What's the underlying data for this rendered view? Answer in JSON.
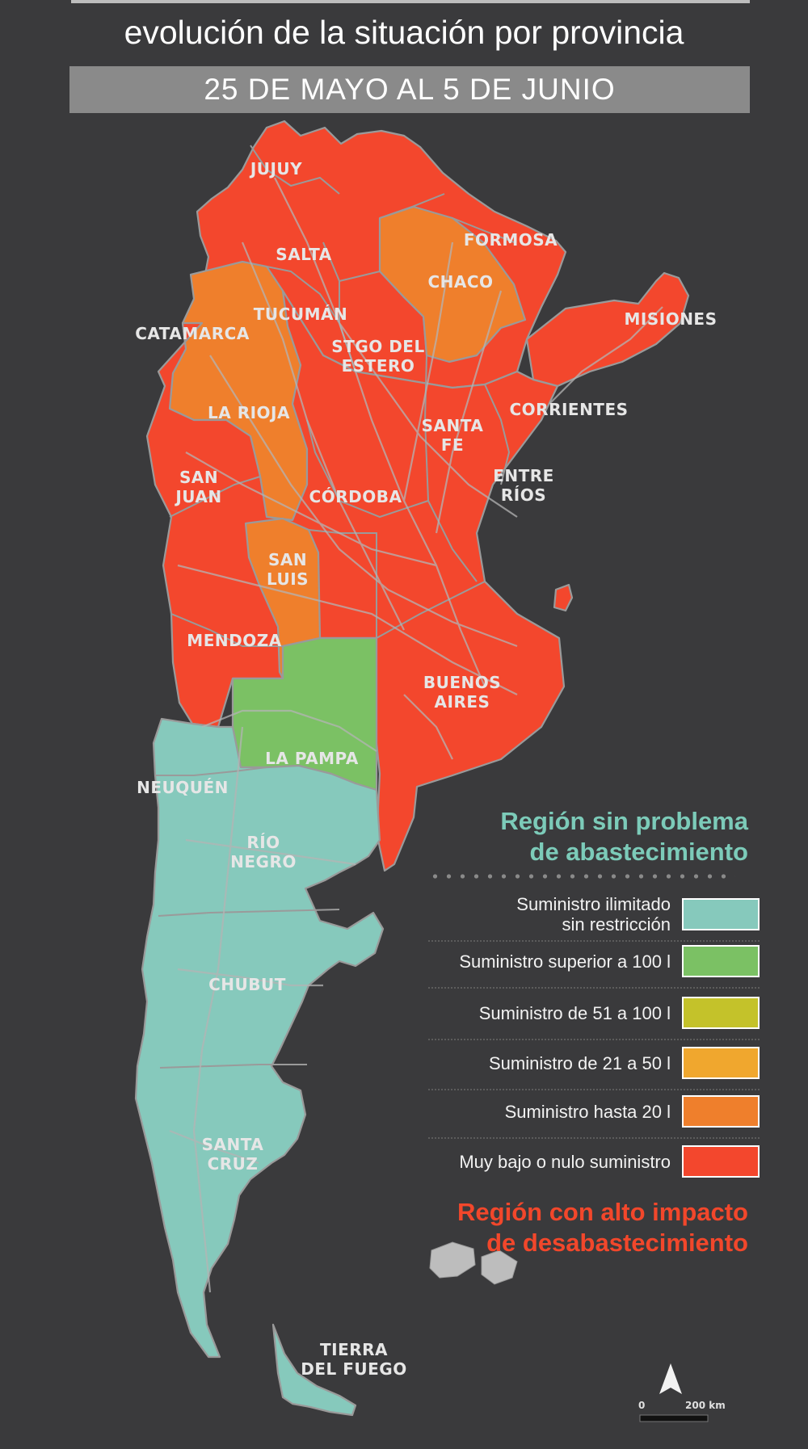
{
  "header": {
    "title": "evolución de la situación por provincia",
    "date_range": "25 DE MAYO AL 5 DE JUNIO"
  },
  "colors": {
    "background": "#3a3a3c",
    "ilimitado": "#86c9bc",
    "superior_100": "#7bc164",
    "de_51_a_100": "#c4c22a",
    "de_21_a_50": "#f0a72e",
    "hasta_20": "#ef7f2c",
    "muy_bajo": "#f3472d",
    "border": "#9a9a9a"
  },
  "provinces": [
    {
      "name": "JUJUY",
      "status": "muy_bajo"
    },
    {
      "name": "SALTA",
      "status": "muy_bajo"
    },
    {
      "name": "FORMOSA",
      "status": "muy_bajo"
    },
    {
      "name": "CHACO",
      "status": "hasta_20"
    },
    {
      "name": "MISIONES",
      "status": "muy_bajo"
    },
    {
      "name": "CATAMARCA",
      "status": "hasta_20"
    },
    {
      "name": "TUCUMÁN",
      "status": "muy_bajo"
    },
    {
      "name": "STGO DEL ESTERO",
      "status": "muy_bajo"
    },
    {
      "name": "CORRIENTES",
      "status": "muy_bajo"
    },
    {
      "name": "LA RIOJA",
      "status": "hasta_20"
    },
    {
      "name": "SANTA FE",
      "status": "muy_bajo"
    },
    {
      "name": "ENTRE RÍOS",
      "status": "muy_bajo"
    },
    {
      "name": "SAN JUAN",
      "status": "muy_bajo"
    },
    {
      "name": "CÓRDOBA",
      "status": "muy_bajo"
    },
    {
      "name": "SAN LUIS",
      "status": "hasta_20"
    },
    {
      "name": "MENDOZA",
      "status": "muy_bajo"
    },
    {
      "name": "BUENOS AIRES",
      "status": "muy_bajo"
    },
    {
      "name": "LA PAMPA",
      "status": "superior_100"
    },
    {
      "name": "NEUQUÉN",
      "status": "ilimitado"
    },
    {
      "name": "RÍO NEGRO",
      "status": "ilimitado"
    },
    {
      "name": "CHUBUT",
      "status": "ilimitado"
    },
    {
      "name": "SANTA CRUZ",
      "status": "ilimitado"
    },
    {
      "name": "TIERRA DEL FUEGO",
      "status": "ilimitado"
    }
  ],
  "map": {
    "labels": {
      "jujuy": "JUJUY",
      "salta": "SALTA",
      "formosa": "FORMOSA",
      "chaco": "CHACO",
      "misiones": "MISIONES",
      "catamarca": "CATAMARCA",
      "tucuman": "TUCUMÁN",
      "stgo_1": "STGO DEL",
      "stgo_2": "ESTERO",
      "corrientes": "CORRIENTES",
      "la_rioja": "LA RIOJA",
      "santa_fe_1": "SANTA",
      "santa_fe_2": "FE",
      "entre_rios_1": "ENTRE",
      "entre_rios_2": "RÍOS",
      "san_juan_1": "SAN",
      "san_juan_2": "JUAN",
      "cordoba": "CÓRDOBA",
      "san_luis_1": "SAN",
      "san_luis_2": "LUIS",
      "mendoza": "MENDOZA",
      "buenos_aires_1": "BUENOS",
      "buenos_aires_2": "AIRES",
      "la_pampa": "LA PAMPA",
      "neuquen": "NEUQUÉN",
      "rio_negro_1": "RÍO",
      "rio_negro_2": "NEGRO",
      "chubut": "CHUBUT",
      "santa_cruz_1": "SANTA",
      "santa_cruz_2": "CRUZ",
      "tierra_1": "TIERRA",
      "tierra_2": "DEL FUEGO"
    },
    "scale": {
      "zero": "0",
      "distance": "200 km"
    }
  },
  "legend": {
    "heading_good": [
      "Región sin problema",
      "de abastecimiento"
    ],
    "heading_bad": [
      "Región con alto impacto",
      "de desabastecimiento"
    ],
    "items": [
      {
        "label_1": "Suministro ilimitado",
        "label_2": "sin restricción",
        "color": "#86c9bc"
      },
      {
        "label_1": "Suministro superior a 100 l",
        "label_2": "",
        "color": "#7bc164"
      },
      {
        "label_1": "Suministro de 51 a 100 l",
        "label_2": "",
        "color": "#c4c22a"
      },
      {
        "label_1": "Suministro de 21 a 50 l",
        "label_2": "",
        "color": "#f0a72e"
      },
      {
        "label_1": "Suministro hasta 20 l",
        "label_2": "",
        "color": "#ef7f2c"
      },
      {
        "label_1": "Muy bajo o nulo suministro",
        "label_2": "",
        "color": "#f3472d"
      }
    ]
  }
}
